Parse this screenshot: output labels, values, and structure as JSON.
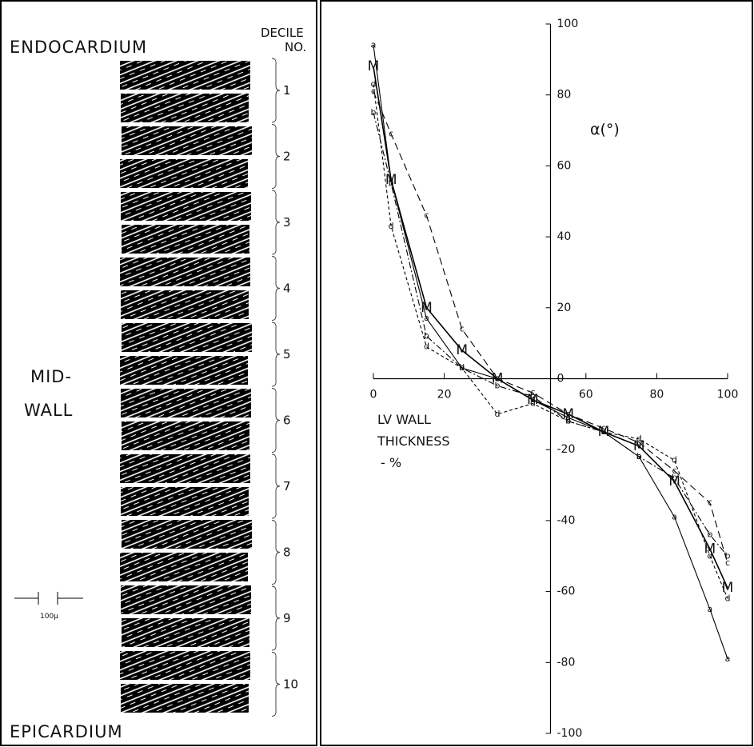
{
  "left_panel": {
    "top_label": "ENDOCARDIUM",
    "decile_header": [
      "DECILE",
      "NO."
    ],
    "deciles": [
      "1",
      "2",
      "3",
      "4",
      "5",
      "6",
      "7",
      "8",
      "9",
      "10"
    ],
    "middle_label": [
      "MID-",
      "WALL"
    ],
    "scale_label": "100μ",
    "bottom_label": "EPICARDIUM"
  },
  "chart_data": {
    "type": "line",
    "y_label": "α(°)",
    "x_label": [
      "LV WALL",
      "THICKNESS",
      "- %"
    ],
    "x": [
      0,
      5,
      15,
      25,
      35,
      45,
      55,
      65,
      75,
      85,
      95,
      100
    ],
    "xlim": [
      0,
      100
    ],
    "xticks": [
      0,
      20,
      60,
      80,
      100
    ],
    "ylim": [
      -100,
      100
    ],
    "yticks": [
      100,
      80,
      60,
      40,
      20,
      0,
      -20,
      -40,
      -60,
      -80,
      -100
    ],
    "series": [
      {
        "name": "a",
        "color": "#000000",
        "style": "solid",
        "values": [
          94,
          56,
          17,
          3,
          0,
          -6,
          -11,
          -15,
          -22,
          -39,
          -65,
          -79
        ]
      },
      {
        "name": "b",
        "color": "#000000",
        "style": "dashdot",
        "values": [
          75,
          55,
          12,
          3,
          -2,
          -5,
          -12,
          -15,
          -22,
          -28,
          -44,
          -50
        ]
      },
      {
        "name": "c",
        "color": "#000000",
        "style": "longdash",
        "values": [
          81,
          69,
          46,
          14,
          0,
          -4,
          -10,
          -14,
          -18,
          -26,
          -35,
          -52
        ]
      },
      {
        "name": "d",
        "color": "#000000",
        "style": "shortdash",
        "values": [
          83,
          43,
          9,
          3,
          -10,
          -7,
          -12,
          -15,
          -17,
          -23,
          -50,
          -62
        ]
      },
      {
        "name": "M",
        "color": "#000000",
        "style": "solid",
        "values": [
          88,
          56,
          20,
          8,
          0,
          -6,
          -10,
          -15,
          -19,
          -29,
          -48,
          -59
        ]
      }
    ]
  }
}
